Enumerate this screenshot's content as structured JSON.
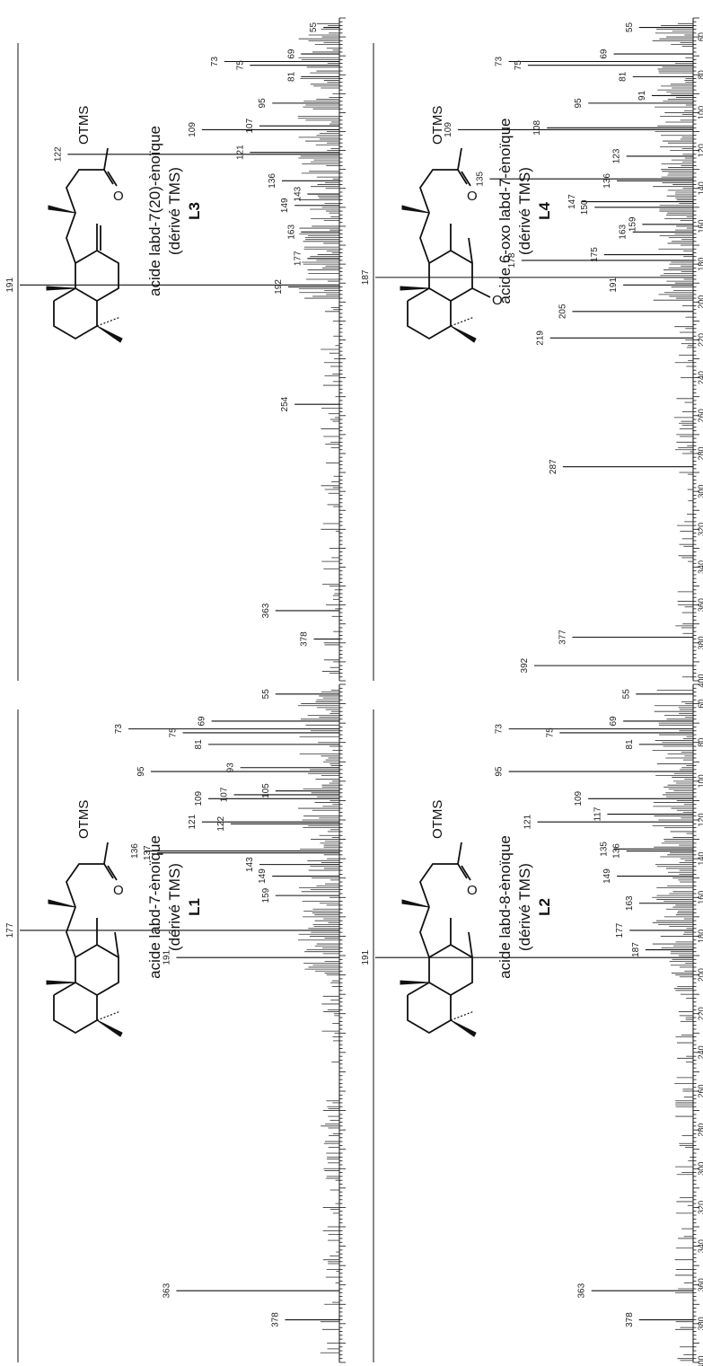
{
  "chart_data": [
    {
      "type": "bar",
      "panel": "L3",
      "compound_name": "acide labd-7(20)-ènoïque",
      "compound_derivative": "(dérivé TMS)",
      "compound_code": "L3",
      "structure_label": "OTMS",
      "carbonyl_label": "O",
      "x_range": [
        50,
        400
      ],
      "x_ticks": [],
      "labeled_peaks": [
        {
          "mz": 55,
          "rel": 5
        },
        {
          "mz": 69,
          "rel": 12
        },
        {
          "mz": 73,
          "rel": 36
        },
        {
          "mz": 75,
          "rel": 28
        },
        {
          "mz": 81,
          "rel": 12
        },
        {
          "mz": 95,
          "rel": 21
        },
        {
          "mz": 107,
          "rel": 25
        },
        {
          "mz": 109,
          "rel": 43
        },
        {
          "mz": 121,
          "rel": 28
        },
        {
          "mz": 122,
          "rel": 85
        },
        {
          "mz": 136,
          "rel": 18
        },
        {
          "mz": 143,
          "rel": 10
        },
        {
          "mz": 149,
          "rel": 14
        },
        {
          "mz": 163,
          "rel": 12
        },
        {
          "mz": 177,
          "rel": 10
        },
        {
          "mz": 191,
          "rel": 100
        },
        {
          "mz": 192,
          "rel": 16
        },
        {
          "mz": 254,
          "rel": 14
        },
        {
          "mz": 363,
          "rel": 20
        },
        {
          "mz": 378,
          "rel": 8
        }
      ]
    },
    {
      "type": "bar",
      "panel": "L4",
      "compound_name": "acide 6-oxo labd-7-ènoïque",
      "compound_derivative": "(dérivé TMS)",
      "compound_code": "L4",
      "structure_label": "OTMS",
      "carbonyl_label": "O",
      "ketone_label": "O",
      "x_range": [
        50,
        400
      ],
      "x_ticks": [
        "60",
        "80",
        "100",
        "120",
        "140",
        "160",
        "180",
        "200",
        "220",
        "240",
        "260",
        "280",
        "300",
        "320",
        "340",
        "360",
        "380",
        "400"
      ],
      "labeled_peaks": [
        {
          "mz": 55,
          "rel": 17
        },
        {
          "mz": 69,
          "rel": 25
        },
        {
          "mz": 73,
          "rel": 58
        },
        {
          "mz": 75,
          "rel": 52
        },
        {
          "mz": 81,
          "rel": 19
        },
        {
          "mz": 91,
          "rel": 13
        },
        {
          "mz": 95,
          "rel": 33
        },
        {
          "mz": 108,
          "rel": 46
        },
        {
          "mz": 109,
          "rel": 74
        },
        {
          "mz": 123,
          "rel": 21
        },
        {
          "mz": 135,
          "rel": 64
        },
        {
          "mz": 136,
          "rel": 24
        },
        {
          "mz": 147,
          "rel": 35
        },
        {
          "mz": 150,
          "rel": 31
        },
        {
          "mz": 159,
          "rel": 16
        },
        {
          "mz": 163,
          "rel": 19
        },
        {
          "mz": 175,
          "rel": 28
        },
        {
          "mz": 178,
          "rel": 54
        },
        {
          "mz": 187,
          "rel": 100
        },
        {
          "mz": 191,
          "rel": 22
        },
        {
          "mz": 205,
          "rel": 38
        },
        {
          "mz": 219,
          "rel": 45
        },
        {
          "mz": 287,
          "rel": 41
        },
        {
          "mz": 377,
          "rel": 38
        },
        {
          "mz": 392,
          "rel": 50
        }
      ]
    },
    {
      "type": "bar",
      "panel": "L1",
      "compound_name": "acide labd-7-ènoïque",
      "compound_derivative": "(dérivé TMS)",
      "compound_code": "L1",
      "structure_label": "OTMS",
      "carbonyl_label": "O",
      "x_range": [
        50,
        400
      ],
      "x_ticks": [],
      "labeled_peaks": [
        {
          "mz": 55,
          "rel": 20
        },
        {
          "mz": 69,
          "rel": 40
        },
        {
          "mz": 73,
          "rel": 66
        },
        {
          "mz": 75,
          "rel": 49
        },
        {
          "mz": 81,
          "rel": 41
        },
        {
          "mz": 93,
          "rel": 31
        },
        {
          "mz": 95,
          "rel": 59
        },
        {
          "mz": 105,
          "rel": 20
        },
        {
          "mz": 107,
          "rel": 33
        },
        {
          "mz": 109,
          "rel": 41
        },
        {
          "mz": 121,
          "rel": 43
        },
        {
          "mz": 122,
          "rel": 34
        },
        {
          "mz": 136,
          "rel": 61
        },
        {
          "mz": 137,
          "rel": 57
        },
        {
          "mz": 143,
          "rel": 25
        },
        {
          "mz": 149,
          "rel": 21
        },
        {
          "mz": 159,
          "rel": 20
        },
        {
          "mz": 177,
          "rel": 100
        },
        {
          "mz": 191,
          "rel": 51
        },
        {
          "mz": 363,
          "rel": 51
        },
        {
          "mz": 378,
          "rel": 17
        }
      ]
    },
    {
      "type": "bar",
      "panel": "L2",
      "compound_name": "acide labd-8-ènoïque",
      "compound_derivative": "(dérivé TMS)",
      "compound_code": "L2",
      "structure_label": "OTMS",
      "carbonyl_label": "O",
      "x_range": [
        50,
        400
      ],
      "x_ticks": [
        "60",
        "80",
        "100",
        "120",
        "140",
        "160",
        "180",
        "200",
        "220",
        "240",
        "260",
        "280",
        "300",
        "320",
        "340",
        "360",
        "380",
        "400"
      ],
      "labeled_peaks": [
        {
          "mz": 55,
          "rel": 18
        },
        {
          "mz": 69,
          "rel": 22
        },
        {
          "mz": 73,
          "rel": 58
        },
        {
          "mz": 75,
          "rel": 42
        },
        {
          "mz": 81,
          "rel": 17
        },
        {
          "mz": 95,
          "rel": 58
        },
        {
          "mz": 109,
          "rel": 33
        },
        {
          "mz": 117,
          "rel": 27
        },
        {
          "mz": 121,
          "rel": 49
        },
        {
          "mz": 135,
          "rel": 25
        },
        {
          "mz": 136,
          "rel": 21
        },
        {
          "mz": 149,
          "rel": 24
        },
        {
          "mz": 163,
          "rel": 17
        },
        {
          "mz": 177,
          "rel": 20
        },
        {
          "mz": 187,
          "rel": 15
        },
        {
          "mz": 191,
          "rel": 100
        },
        {
          "mz": 363,
          "rel": 32
        },
        {
          "mz": 378,
          "rel": 17
        }
      ]
    }
  ]
}
